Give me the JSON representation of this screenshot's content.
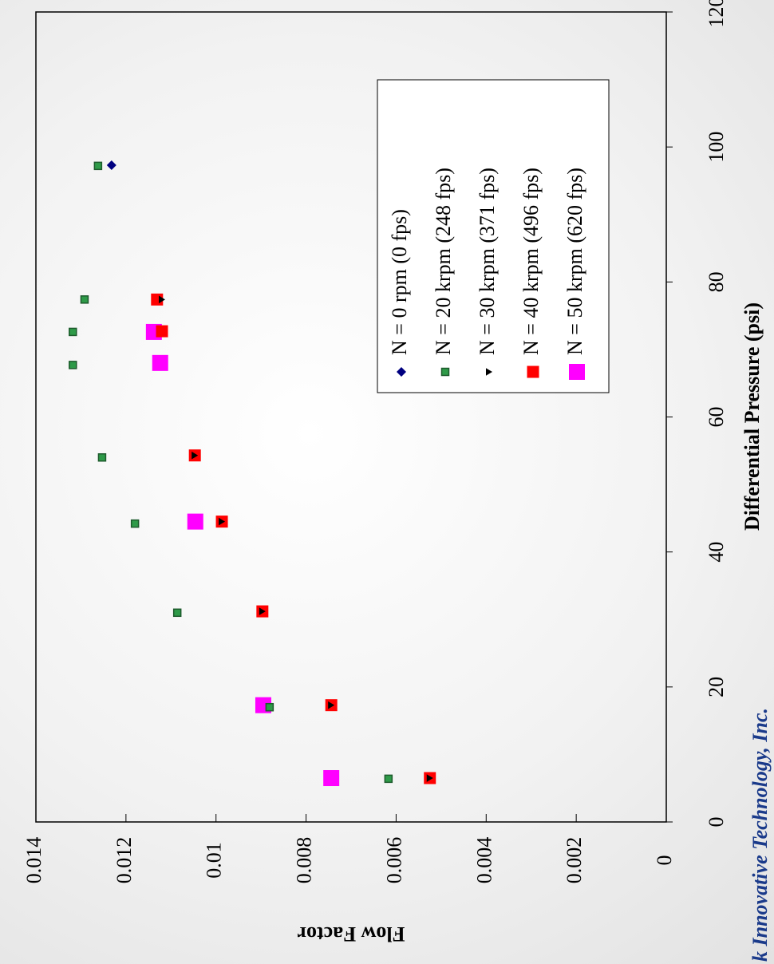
{
  "chart_data": {
    "type": "scatter",
    "xlabel": "Differential Pressure (psi)",
    "ylabel": "Flow Factor",
    "watermark": "k Innovative Technology, Inc.",
    "xlim": [
      0,
      120
    ],
    "xticks": [
      0,
      20,
      40,
      60,
      80,
      100,
      120
    ],
    "ylim": [
      0,
      0.014
    ],
    "yticks": [
      0,
      0.002,
      0.004,
      0.006,
      0.008,
      0.01,
      0.012,
      0.014
    ],
    "legend": true,
    "series": [
      {
        "name": "N = 0 rpm (0 fps)",
        "color": "#000080",
        "marker": "diamond",
        "x": [
          97.3
        ],
        "values": [
          0.01232
        ]
      },
      {
        "name": "N = 20 krpm (248 fps)",
        "color": "#2e9a48",
        "marker": "square",
        "x": [
          97.2,
          77.4,
          72.6,
          67.7,
          54.0,
          44.2,
          31.0,
          17.0,
          6.4
        ],
        "values": [
          0.01262,
          0.01292,
          0.01318,
          0.01318,
          0.01253,
          0.0118,
          0.01086,
          0.00881,
          0.00617
        ]
      },
      {
        "name": "N = 30 krpm (371 fps)",
        "color": "#000000",
        "marker": "triangle",
        "x": [
          77.4,
          54.3,
          44.5,
          31.2,
          17.3,
          6.5
        ],
        "values": [
          0.0112,
          0.01047,
          0.00987,
          0.00897,
          0.00744,
          0.00525
        ]
      },
      {
        "name": "N = 40 krpm (496 fps)",
        "color": "#ff0000",
        "marker": "square",
        "x": [
          77.4,
          72.7,
          54.3,
          44.5,
          31.2,
          17.3,
          6.5
        ],
        "values": [
          0.01131,
          0.0112,
          0.01047,
          0.00987,
          0.00897,
          0.00744,
          0.00525
        ]
      },
      {
        "name": "N = 50 krpm (620 fps)",
        "color": "#ff00ff",
        "marker": "square",
        "x": [
          72.6,
          68.0,
          44.5,
          17.3,
          6.5
        ],
        "values": [
          0.01138,
          0.01124,
          0.01046,
          0.00895,
          0.00744
        ]
      }
    ]
  }
}
